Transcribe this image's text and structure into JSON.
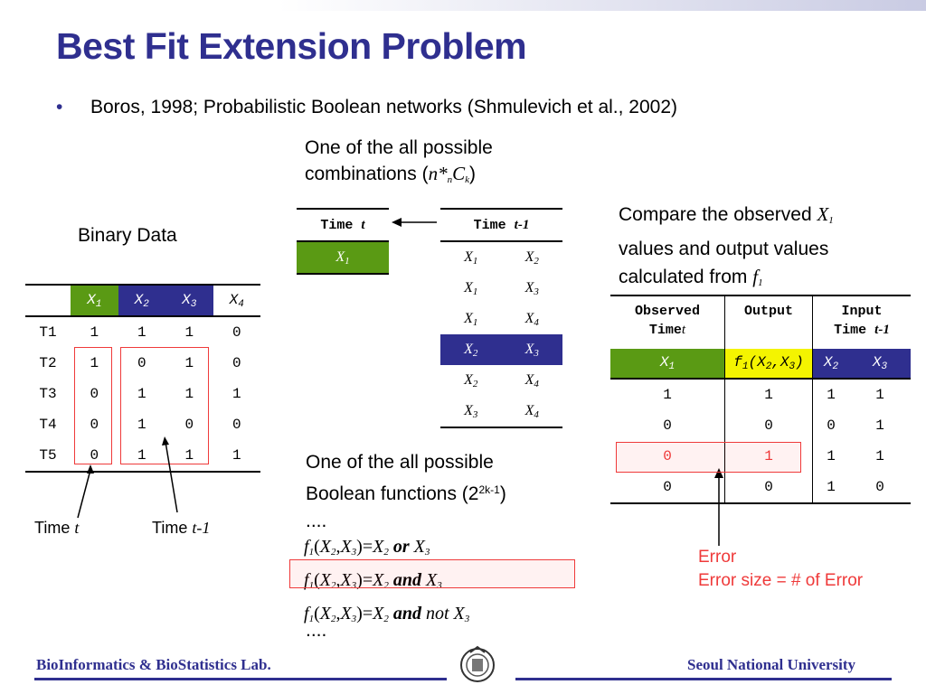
{
  "title": "Best Fit Extension Problem",
  "bullet": "Boros, 1998; Probabilistic Boolean networks (Shmulevich et al., 2002)",
  "combos_caption_line1": "One of the all possible",
  "combos_caption_line2": "combinations (",
  "combos_formula": "n*",
  "combos_sub_n": "n",
  "combos_C": "C",
  "combos_sub_k": "k",
  "combos_close": ")",
  "binary_label": "Binary Data",
  "binary_table": {
    "headers": [
      "X1",
      "X2",
      "X3",
      "X4"
    ],
    "rows": [
      {
        "t": "T1",
        "v": [
          "1",
          "1",
          "1",
          "0"
        ]
      },
      {
        "t": "T2",
        "v": [
          "1",
          "0",
          "1",
          "0"
        ]
      },
      {
        "t": "T3",
        "v": [
          "0",
          "1",
          "1",
          "1"
        ]
      },
      {
        "t": "T4",
        "v": [
          "0",
          "1",
          "0",
          "0"
        ]
      },
      {
        "t": "T5",
        "v": [
          "0",
          "1",
          "1",
          "1"
        ]
      }
    ]
  },
  "time_t_label": "Time",
  "time_t_var": "t",
  "time_tm1_label": "Time",
  "time_tm1_var": "t-1",
  "time_t_table": {
    "header": "Time",
    "header_var": "t",
    "row": "X1"
  },
  "time_tm1_table": {
    "header": "Time",
    "header_var": "t-1",
    "rows": [
      [
        "X1",
        "X2"
      ],
      [
        "X1",
        "X3"
      ],
      [
        "X1",
        "X4"
      ],
      [
        "X2",
        "X3"
      ],
      [
        "X2",
        "X4"
      ],
      [
        "X3",
        "X4"
      ]
    ]
  },
  "compare_line1": "Compare the observed",
  "compare_var1": "X",
  "compare_line2": "values and output values",
  "compare_line3": "calculated from",
  "compare_var3": "f",
  "result_table": {
    "col1_header_line1": "Observed",
    "col1_header_line2": "Time",
    "col2_header": "Output",
    "col3_header_line1": "Input",
    "col3_header_line2": "Time",
    "rows": [
      [
        "1",
        "1",
        "1",
        "1"
      ],
      [
        "0",
        "0",
        "0",
        "1"
      ],
      [
        "0",
        "1",
        "1",
        "1"
      ],
      [
        "0",
        "0",
        "1",
        "0"
      ]
    ]
  },
  "func_caption_line1": "One of the all possible",
  "func_caption_line2": "Boolean functions (2",
  "func_caption_sup": "2k-1",
  "func_caption_close": ")",
  "ellipsis": "....",
  "functions": [
    "or",
    "and",
    "and not"
  ],
  "error_label": "Error",
  "error_size": "Error size = # of Error",
  "footer_left": "BioInformatics & BioStatistics Lab.",
  "footer_right": "Seoul National University",
  "colors": {
    "title": "#2f2f8f",
    "green": "#5a9a14",
    "blue": "#2f2f8f",
    "yellow": "#f4f400",
    "red": "#ef3a3a"
  },
  "icons": [
    "arrow-left-icon",
    "university-seal-icon"
  ]
}
